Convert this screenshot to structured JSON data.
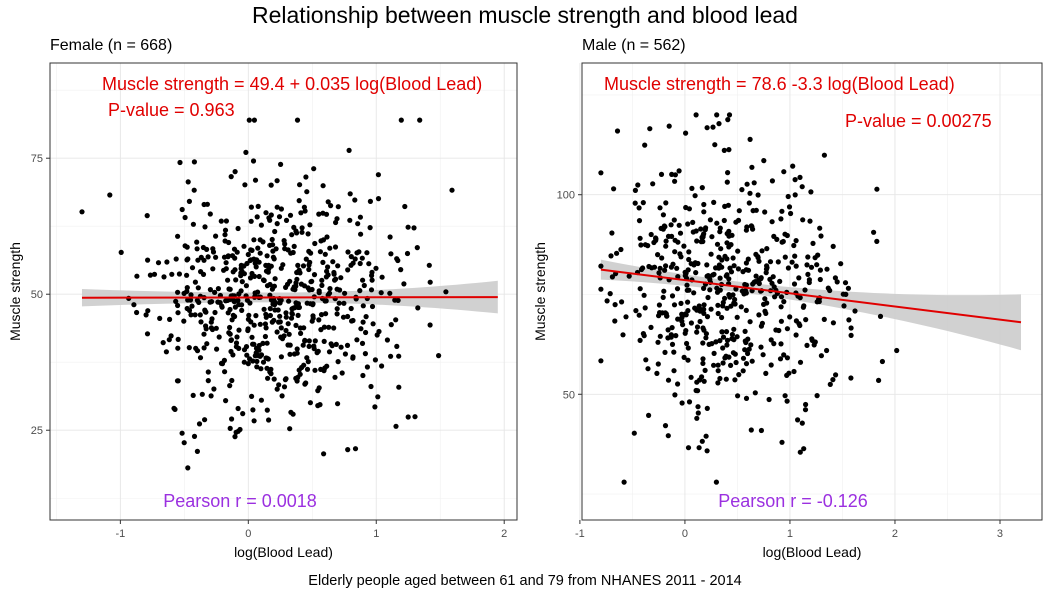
{
  "title": "Relationship between muscle strength and blood lead",
  "caption": "Elderly people aged between 61 and 79 from NHANES 2011 - 2014",
  "chart_data": [
    {
      "type": "scatter",
      "subtitle": "Female (n = 668)",
      "xlabel": "log(Blood Lead)",
      "ylabel": "Muscle strength",
      "xlim": [
        -1.55,
        2.1
      ],
      "ylim": [
        8.5,
        92.5
      ],
      "xticks": [
        -1,
        0,
        1,
        2
      ],
      "yticks": [
        25,
        50,
        75
      ],
      "grid": true,
      "colors": {
        "points": "#000000",
        "fit_line": "#e00000",
        "band": "#cccccc",
        "equation": "#e00000",
        "pvalue": "#e00000",
        "pearson": "#9b30e0"
      },
      "annotations": {
        "equation": "Muscle strength =  49.4 + 0.035 log(Blood Lead)",
        "pvalue": "P-value = 0.963",
        "pearson": "Pearson r =  0.0018"
      },
      "regression": {
        "intercept": 49.4,
        "slope": 0.035,
        "x_range": [
          -1.3,
          1.95
        ],
        "band_halfwidth": [
          1.6,
          0.9,
          3.0
        ]
      },
      "scatter_gen": {
        "n": 668,
        "x_mean": 0.2,
        "x_sd": 0.48,
        "x_min": -1.3,
        "x_max": 1.97,
        "y_mean": 49.4,
        "y_sd": 11.0,
        "y_min": 14,
        "y_max": 82,
        "seed": 11
      }
    },
    {
      "type": "scatter",
      "subtitle": "Male (n = 562)",
      "xlabel": "log(Blood Lead)",
      "ylabel": "Muscle strength",
      "xlim": [
        -0.98,
        3.4
      ],
      "ylim": [
        18.5,
        133
      ],
      "xticks": [
        -1,
        0,
        1,
        2,
        3
      ],
      "yticks": [
        50,
        100
      ],
      "grid": true,
      "colors": {
        "points": "#000000",
        "fit_line": "#e00000",
        "band": "#cccccc",
        "equation": "#e00000",
        "pvalue": "#e00000",
        "pearson": "#9b30e0"
      },
      "annotations": {
        "equation": "Muscle strength =  78.6 -3.3 log(Blood Lead)",
        "pvalue": "P-value = 0.00275",
        "pearson": "Pearson r =  -0.126"
      },
      "regression": {
        "intercept": 78.6,
        "slope": -3.3,
        "x_range": [
          -0.8,
          3.2
        ],
        "band_halfwidth": [
          2.5,
          1.3,
          7.0
        ]
      },
      "scatter_gen": {
        "n": 562,
        "x_mean": 0.4,
        "x_sd": 0.55,
        "x_min": -0.8,
        "x_max": 3.2,
        "y_mean": 78.0,
        "y_sd": 16.5,
        "y_min": 28,
        "y_max": 120,
        "seed": 29
      }
    }
  ]
}
